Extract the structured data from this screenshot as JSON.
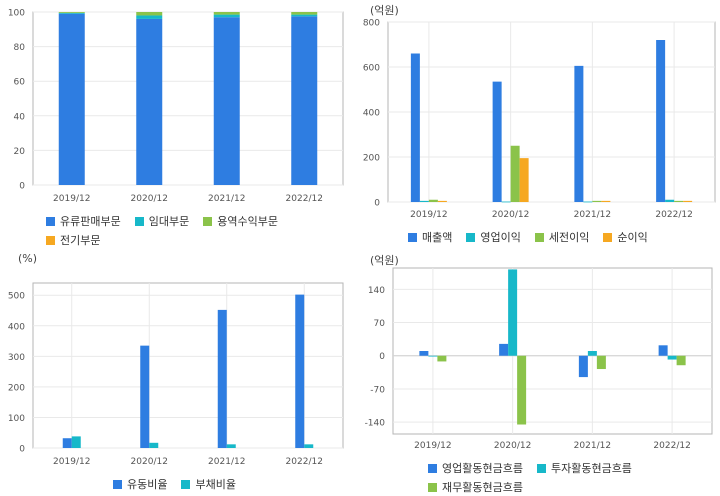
{
  "colors": {
    "blue": "#2e7de1",
    "cyan": "#17b8c9",
    "green": "#8bc34a",
    "orange": "#f6a821",
    "grid": "#e9e9e9",
    "axis": "#b5b5b5"
  },
  "chart_data": [
    {
      "id": "revenue-mix",
      "type": "bar",
      "stacked": true,
      "unit": "",
      "categories": [
        "2019/12",
        "2020/12",
        "2021/12",
        "2022/12"
      ],
      "ylim": [
        0,
        100
      ],
      "yticks": [
        0,
        20,
        40,
        60,
        80,
        100
      ],
      "series": [
        {
          "name": "유류판매부문",
          "color": "blue",
          "values": [
            99,
            96,
            97,
            97.5
          ]
        },
        {
          "name": "임대부문",
          "color": "cyan",
          "values": [
            0.5,
            2,
            1.5,
            1
          ]
        },
        {
          "name": "용역수익부문",
          "color": "green",
          "values": [
            0.5,
            2,
            1.5,
            1.5
          ]
        },
        {
          "name": "전기부문",
          "color": "orange",
          "values": [
            0,
            0,
            0,
            0
          ]
        }
      ],
      "grid": true,
      "legend": "bottom"
    },
    {
      "id": "profit",
      "type": "bar",
      "unit": "(억원)",
      "categories": [
        "2019/12",
        "2020/12",
        "2021/12",
        "2022/12"
      ],
      "ylim": [
        0,
        800
      ],
      "yticks": [
        0,
        200,
        400,
        600,
        800
      ],
      "series": [
        {
          "name": "매출액",
          "color": "blue",
          "values": [
            660,
            535,
            605,
            720
          ]
        },
        {
          "name": "영업이익",
          "color": "cyan",
          "values": [
            5,
            2,
            2,
            10
          ]
        },
        {
          "name": "세전이익",
          "color": "green",
          "values": [
            10,
            250,
            5,
            5
          ]
        },
        {
          "name": "순이익",
          "color": "orange",
          "values": [
            5,
            195,
            5,
            5
          ]
        }
      ],
      "grid": true,
      "legend": "bottom"
    },
    {
      "id": "ratios",
      "type": "bar",
      "unit": "(%)",
      "categories": [
        "2019/12",
        "2020/12",
        "2021/12",
        "2022/12"
      ],
      "ylim": [
        0,
        540
      ],
      "yticks": [
        0,
        100,
        200,
        300,
        400,
        500
      ],
      "series": [
        {
          "name": "유동비율",
          "color": "blue",
          "values": [
            32,
            335,
            452,
            502
          ]
        },
        {
          "name": "부채비율",
          "color": "cyan",
          "values": [
            38,
            17,
            12,
            12
          ]
        }
      ],
      "grid": true,
      "legend": "bottom"
    },
    {
      "id": "cashflow",
      "type": "bar",
      "unit": "(억원)",
      "categories": [
        "2019/12",
        "2020/12",
        "2021/12",
        "2022/12"
      ],
      "ylim": [
        -165,
        185
      ],
      "yticks": [
        -140,
        -70,
        0,
        70,
        140
      ],
      "series": [
        {
          "name": "영업활동현금흐름",
          "color": "blue",
          "values": [
            10,
            25,
            -45,
            22
          ]
        },
        {
          "name": "투자활동현금흐름",
          "color": "cyan",
          "values": [
            0,
            182,
            10,
            -8
          ]
        },
        {
          "name": "재무활동현금흐름",
          "color": "green",
          "values": [
            -12,
            -145,
            -28,
            -20
          ]
        }
      ],
      "grid": true,
      "legend": "bottom"
    }
  ]
}
